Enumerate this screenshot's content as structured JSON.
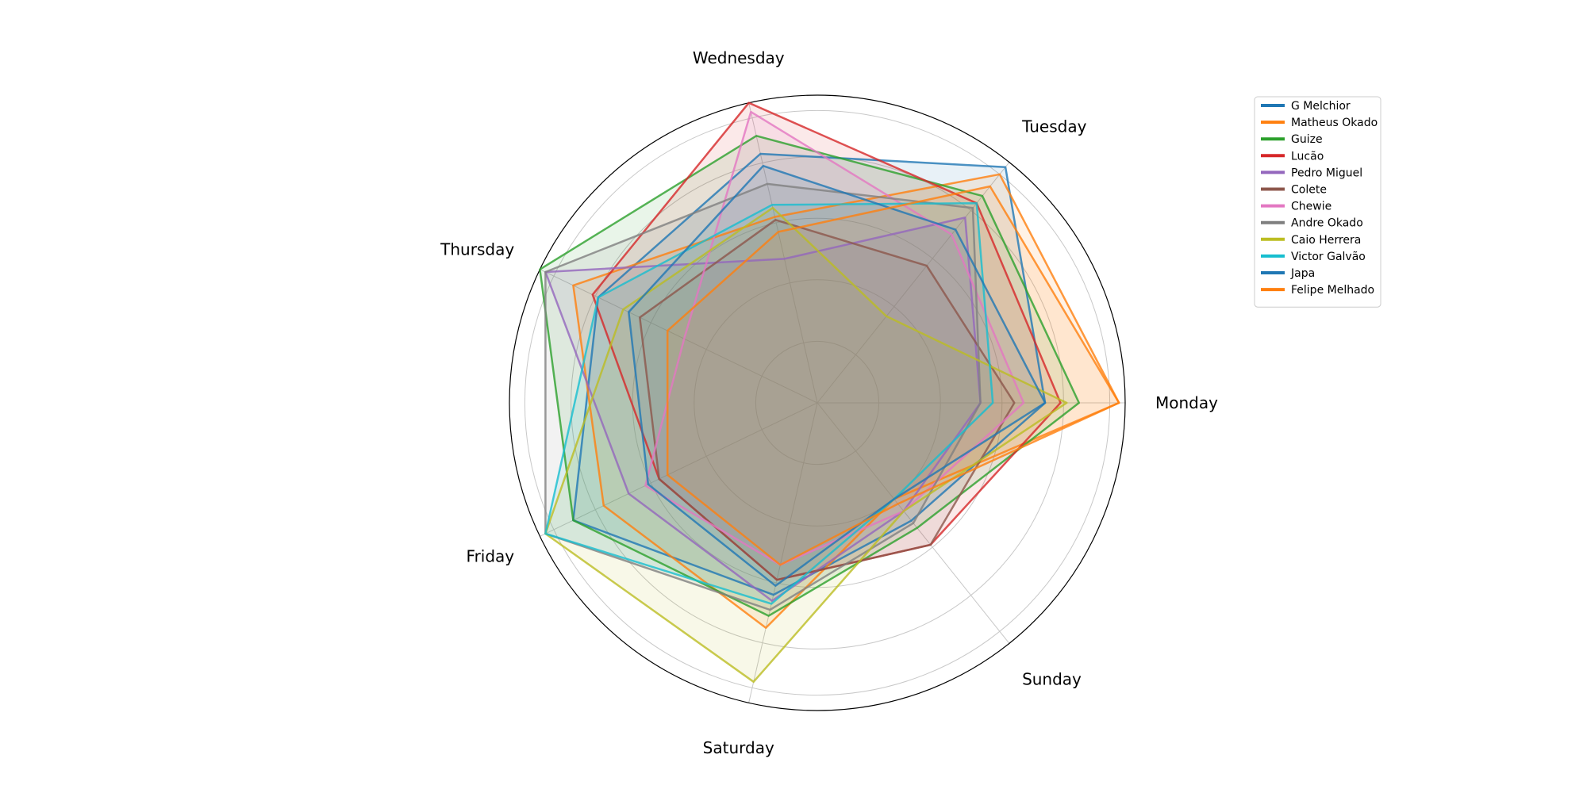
{
  "chart_data": {
    "type": "radar",
    "title": "",
    "categories": [
      "Monday",
      "Tuesday",
      "Wednesday",
      "Thursday",
      "Friday",
      "Saturday",
      "Sunday"
    ],
    "rlim": [
      0,
      1.0
    ],
    "grid": true,
    "legend_position": "top-right",
    "series": [
      {
        "name": "G Melchior",
        "color": "#1f77b4",
        "values": [
          0.74,
          0.98,
          0.83,
          0.79,
          0.88,
          0.64,
          0.49
        ]
      },
      {
        "name": "Matheus Okado",
        "color": "#ff7f0e",
        "values": [
          0.98,
          0.95,
          0.62,
          0.88,
          0.77,
          0.75,
          0.4
        ]
      },
      {
        "name": "Guize",
        "color": "#2ca02c",
        "values": [
          0.85,
          0.86,
          0.89,
          1.0,
          0.88,
          0.71,
          0.52
        ]
      },
      {
        "name": "Lucão",
        "color": "#d62728",
        "values": [
          0.79,
          0.83,
          1.0,
          0.81,
          0.57,
          0.59,
          0.59
        ]
      },
      {
        "name": "Pedro Miguel",
        "color": "#9467bd",
        "values": [
          0.53,
          0.77,
          0.48,
          0.98,
          0.68,
          0.66,
          0.45
        ]
      },
      {
        "name": "Colete",
        "color": "#8c564b",
        "values": [
          0.64,
          0.57,
          0.61,
          0.64,
          0.57,
          0.59,
          0.59
        ]
      },
      {
        "name": "Chewie",
        "color": "#e377c2",
        "values": [
          0.67,
          0.7,
          0.97,
          0.48,
          0.62,
          0.54,
          0.45
        ]
      },
      {
        "name": "Andre Okado",
        "color": "#7f7f7f",
        "values": [
          0.53,
          0.81,
          0.73,
          0.98,
          0.98,
          0.69,
          0.5
        ]
      },
      {
        "name": "Caio Herrera",
        "color": "#bcbd22",
        "values": [
          0.81,
          0.36,
          0.65,
          0.7,
          0.98,
          0.93,
          0.45
        ]
      },
      {
        "name": "Victor Galvão",
        "color": "#17becf",
        "values": [
          0.57,
          0.83,
          0.66,
          0.79,
          0.98,
          0.67,
          0.4
        ]
      },
      {
        "name": "Japa",
        "color": "#1f77b4",
        "values": [
          0.74,
          0.72,
          0.79,
          0.68,
          0.61,
          0.61,
          0.4
        ]
      },
      {
        "name": "Felipe Melhado",
        "color": "#ff7f0e",
        "values": [
          0.98,
          0.9,
          0.57,
          0.54,
          0.54,
          0.54,
          0.42
        ]
      }
    ]
  }
}
